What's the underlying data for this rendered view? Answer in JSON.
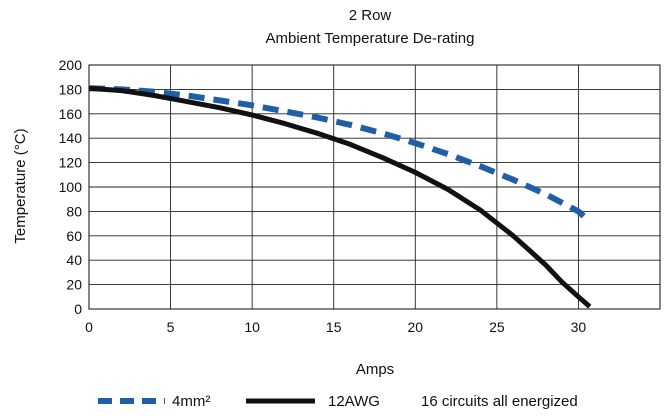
{
  "chart_data": {
    "type": "line",
    "title": "2 Row",
    "subtitle": "Ambient Temperature De-rating",
    "xlabel": "Amps",
    "ylabel": "Temperature (°C)",
    "xlim": [
      0,
      35
    ],
    "ylim": [
      0,
      200
    ],
    "x_ticks": [
      0,
      5,
      10,
      15,
      20,
      25,
      30
    ],
    "y_ticks": [
      0,
      20,
      40,
      60,
      80,
      100,
      120,
      140,
      160,
      180,
      200
    ],
    "grid": true,
    "legend_position": "bottom",
    "series": [
      {
        "name": "4mm²",
        "color": "#1f5fa6",
        "style": "dashed",
        "x": [
          0,
          2,
          4,
          6,
          8,
          10,
          12,
          14,
          16,
          18,
          20,
          22,
          24,
          26,
          28,
          30,
          30.5
        ],
        "y": [
          181,
          180,
          178,
          175,
          171,
          167,
          162,
          157,
          151,
          144,
          136,
          127,
          117,
          106,
          94,
          80,
          74
        ]
      },
      {
        "name": "12AWG",
        "color": "#111111",
        "style": "solid",
        "x": [
          0,
          2,
          4,
          6,
          8,
          10,
          12,
          14,
          16,
          18,
          20,
          22,
          24,
          26,
          27,
          28,
          29,
          30,
          30.7
        ],
        "y": [
          181,
          179,
          175,
          170,
          165,
          159,
          152,
          144,
          135,
          124,
          112,
          98,
          81,
          60,
          48,
          36,
          22,
          10,
          2
        ]
      }
    ],
    "annotation": "16 circuits all energized"
  }
}
